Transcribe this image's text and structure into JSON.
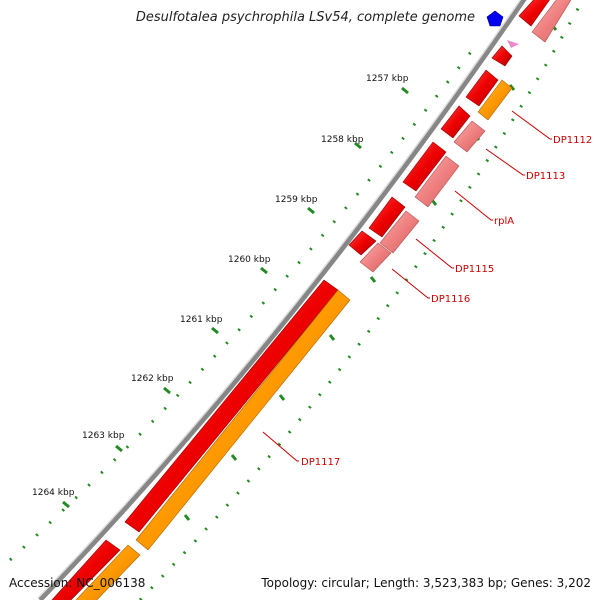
{
  "title": "Desulfotalea psychrophila LSv54, complete genome",
  "footer": {
    "accession": "Accession: NC_006138",
    "summary": "Topology: circular; Length: 3,523,383 bp; Genes: 3,202"
  },
  "ticks": [
    {
      "label": "1257 kbp"
    },
    {
      "label": "1258 kbp"
    },
    {
      "label": "1259 kbp"
    },
    {
      "label": "1260 kbp"
    },
    {
      "label": "1261 kbp"
    },
    {
      "label": "1262 kbp"
    },
    {
      "label": "1263 kbp"
    },
    {
      "label": "1264 kbp"
    }
  ],
  "genes": [
    {
      "label": "DP1112"
    },
    {
      "label": "DP1113"
    },
    {
      "label": "rplA"
    },
    {
      "label": "DP1115"
    },
    {
      "label": "DP1116"
    },
    {
      "label": "DP1117"
    }
  ],
  "colors": {
    "backbone": "#808080",
    "cds": "#ee0000",
    "cds_light": "#f08080",
    "rna": "#ff9900",
    "tick": "#228B22",
    "label": "#cc0000",
    "marker": "#0000ee",
    "pink_marker": "#ee88cc"
  }
}
